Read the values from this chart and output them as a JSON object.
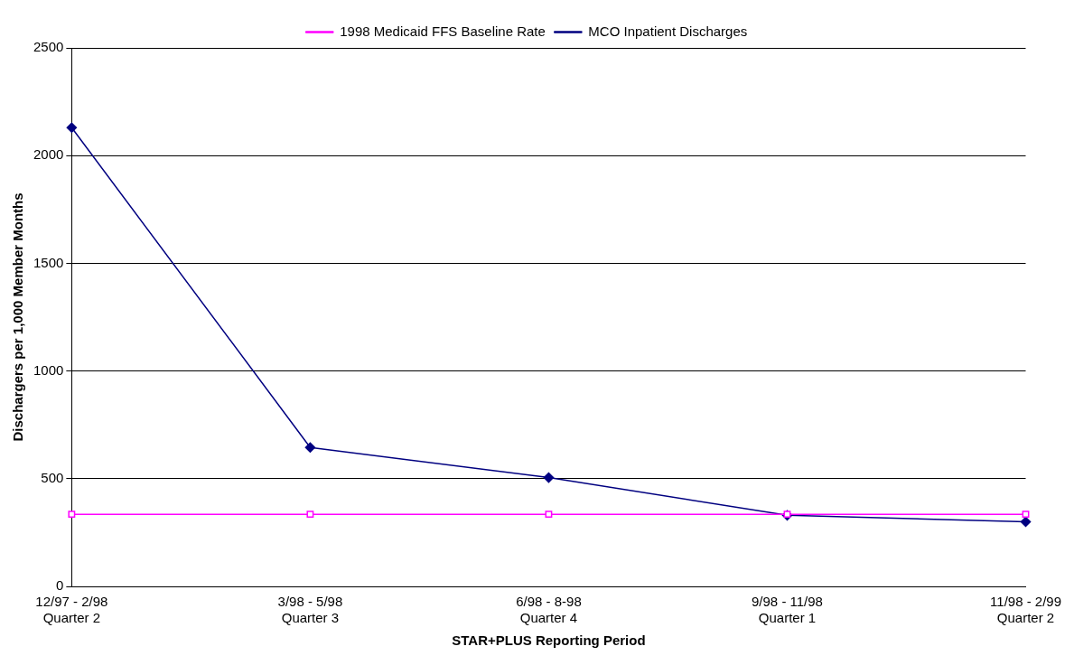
{
  "chart_data": {
    "type": "line",
    "xlabel": "STAR+PLUS Reporting Period",
    "ylabel": "Dischargers per 1,000 Member Months",
    "categories": [
      "12/97 - 2/98\nQuarter 2",
      "3/98 - 5/98\nQuarter 3",
      "6/98 - 8-98\nQuarter 4",
      "9/98 - 11/98\nQuarter 1",
      "11/98 - 2/99\nQuarter 2"
    ],
    "series": [
      {
        "name": "MCO Inpatient Discharges",
        "color": "#000080",
        "marker": "diamond",
        "values": [
          2130,
          645,
          505,
          330,
          300
        ]
      },
      {
        "name": "1998 Medicaid FFS Baseline Rate",
        "color": "#ff00ff",
        "marker": "square",
        "values": [
          335,
          335,
          335,
          335,
          335
        ]
      }
    ],
    "ylim": [
      0,
      2500
    ],
    "yticks": [
      0,
      500,
      1000,
      1500,
      2000,
      2500
    ],
    "grid": "y",
    "legend": "top",
    "line_style": "solid"
  }
}
